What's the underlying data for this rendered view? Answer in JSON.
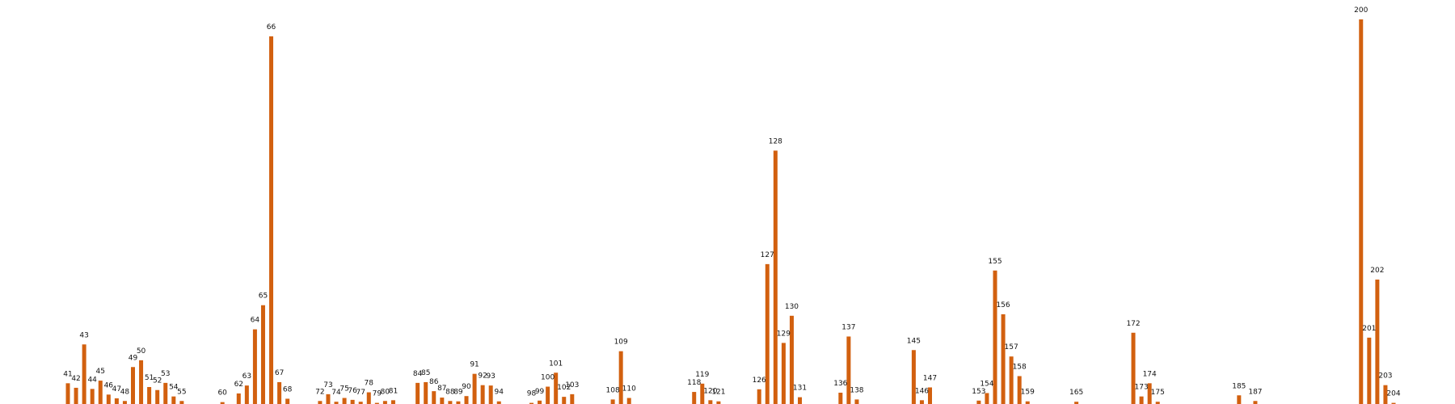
{
  "chart_data": {
    "type": "bar",
    "title": "",
    "xlabel": "",
    "ylabel": "",
    "ylim": [
      0,
      102
    ],
    "grid": false,
    "bar_color": "#d2600f",
    "points": [
      {
        "x": 41,
        "label": "41",
        "value": 5.5
      },
      {
        "x": 42,
        "label": "42",
        "value": 4.3
      },
      {
        "x": 43,
        "label": "43",
        "value": 15.8
      },
      {
        "x": 44,
        "label": "44",
        "value": 4.0
      },
      {
        "x": 45,
        "label": "45",
        "value": 6.2
      },
      {
        "x": 46,
        "label": "46",
        "value": 2.5
      },
      {
        "x": 47,
        "label": "47",
        "value": 1.5
      },
      {
        "x": 48,
        "label": "48",
        "value": 0.8
      },
      {
        "x": 49,
        "label": "49",
        "value": 9.8
      },
      {
        "x": 50,
        "label": "50",
        "value": 11.6
      },
      {
        "x": 51,
        "label": "51",
        "value": 4.5
      },
      {
        "x": 52,
        "label": "52",
        "value": 3.7
      },
      {
        "x": 53,
        "label": "53",
        "value": 5.6
      },
      {
        "x": 54,
        "label": "54",
        "value": 2.0
      },
      {
        "x": 55,
        "label": "55",
        "value": 0.8
      },
      {
        "x": 60,
        "label": "60",
        "value": 0.5
      },
      {
        "x": 62,
        "label": "62",
        "value": 2.8
      },
      {
        "x": 63,
        "label": "63",
        "value": 4.9
      },
      {
        "x": 64,
        "label": "64",
        "value": 19.8
      },
      {
        "x": 65,
        "label": "65",
        "value": 26.2
      },
      {
        "x": 66,
        "label": "66",
        "value": 97.5
      },
      {
        "x": 67,
        "label": "67",
        "value": 5.8
      },
      {
        "x": 68,
        "label": "68",
        "value": 1.4
      },
      {
        "x": 72,
        "label": "72",
        "value": 0.8
      },
      {
        "x": 73,
        "label": "73",
        "value": 2.6
      },
      {
        "x": 74,
        "label": "74",
        "value": 0.6
      },
      {
        "x": 75,
        "label": "75",
        "value": 1.6
      },
      {
        "x": 76,
        "label": "76",
        "value": 1.1
      },
      {
        "x": 77,
        "label": "77",
        "value": 0.6
      },
      {
        "x": 78,
        "label": "78",
        "value": 3.1
      },
      {
        "x": 79,
        "label": "79",
        "value": 0.3
      },
      {
        "x": 80,
        "label": "80",
        "value": 0.8
      },
      {
        "x": 81,
        "label": "81",
        "value": 1.0
      },
      {
        "x": 84,
        "label": "84",
        "value": 5.6
      },
      {
        "x": 85,
        "label": "85",
        "value": 5.8
      },
      {
        "x": 86,
        "label": "86",
        "value": 3.4
      },
      {
        "x": 87,
        "label": "87",
        "value": 1.7
      },
      {
        "x": 88,
        "label": "88",
        "value": 0.8
      },
      {
        "x": 89,
        "label": "89",
        "value": 0.7
      },
      {
        "x": 90,
        "label": "90",
        "value": 2.1
      },
      {
        "x": 91,
        "label": "91",
        "value": 8.0
      },
      {
        "x": 92,
        "label": "92",
        "value": 5.0
      },
      {
        "x": 93,
        "label": "93",
        "value": 4.9
      },
      {
        "x": 94,
        "label": "94",
        "value": 0.7
      },
      {
        "x": 98,
        "label": "98",
        "value": 0.3
      },
      {
        "x": 99,
        "label": "99",
        "value": 0.9
      },
      {
        "x": 100,
        "label": "100",
        "value": 4.6
      },
      {
        "x": 101,
        "label": "101",
        "value": 8.3
      },
      {
        "x": 102,
        "label": "102",
        "value": 1.9
      },
      {
        "x": 103,
        "label": "103",
        "value": 2.6
      },
      {
        "x": 108,
        "label": "108",
        "value": 1.2
      },
      {
        "x": 109,
        "label": "109",
        "value": 14.0
      },
      {
        "x": 110,
        "label": "110",
        "value": 1.6
      },
      {
        "x": 118,
        "label": "118",
        "value": 3.2
      },
      {
        "x": 119,
        "label": "119",
        "value": 5.4
      },
      {
        "x": 120,
        "label": "120",
        "value": 1.0
      },
      {
        "x": 121,
        "label": "121",
        "value": 0.7
      },
      {
        "x": 126,
        "label": "126",
        "value": 3.9
      },
      {
        "x": 127,
        "label": "127",
        "value": 37.1
      },
      {
        "x": 128,
        "label": "128",
        "value": 67.2
      },
      {
        "x": 129,
        "label": "129",
        "value": 16.2
      },
      {
        "x": 130,
        "label": "130",
        "value": 23.4
      },
      {
        "x": 131,
        "label": "131",
        "value": 1.8
      },
      {
        "x": 136,
        "label": "136",
        "value": 3.0
      },
      {
        "x": 137,
        "label": "137",
        "value": 17.9
      },
      {
        "x": 138,
        "label": "138",
        "value": 1.2
      },
      {
        "x": 145,
        "label": "145",
        "value": 14.3
      },
      {
        "x": 146,
        "label": "146",
        "value": 1.0
      },
      {
        "x": 147,
        "label": "147",
        "value": 4.4
      },
      {
        "x": 153,
        "label": "153",
        "value": 0.9
      },
      {
        "x": 154,
        "label": "154",
        "value": 2.9
      },
      {
        "x": 155,
        "label": "155",
        "value": 35.4
      },
      {
        "x": 156,
        "label": "156",
        "value": 23.8
      },
      {
        "x": 157,
        "label": "157",
        "value": 12.6
      },
      {
        "x": 158,
        "label": "158",
        "value": 7.4
      },
      {
        "x": 159,
        "label": "159",
        "value": 0.7
      },
      {
        "x": 165,
        "label": "165",
        "value": 0.6
      },
      {
        "x": 172,
        "label": "172",
        "value": 18.9
      },
      {
        "x": 173,
        "label": "173",
        "value": 2.0
      },
      {
        "x": 174,
        "label": "174",
        "value": 5.5
      },
      {
        "x": 175,
        "label": "175",
        "value": 0.6
      },
      {
        "x": 185,
        "label": "185",
        "value": 2.3
      },
      {
        "x": 187,
        "label": "187",
        "value": 0.8
      },
      {
        "x": 200,
        "label": "200",
        "value": 102.0
      },
      {
        "x": 201,
        "label": "201",
        "value": 17.6
      },
      {
        "x": 202,
        "label": "202",
        "value": 33.0
      },
      {
        "x": 203,
        "label": "203",
        "value": 5.0
      },
      {
        "x": 204,
        "label": "204",
        "value": 0.3
      }
    ]
  }
}
